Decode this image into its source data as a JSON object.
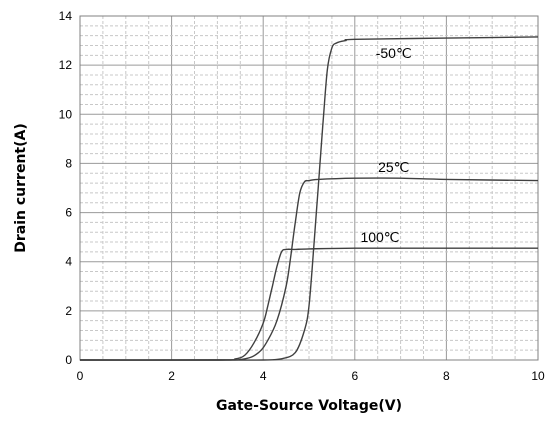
{
  "chart_data": {
    "type": "line",
    "title": "",
    "xlabel": "Gate-Source Voltage(V)",
    "ylabel": "Drain current(A)",
    "xlim": [
      0,
      10
    ],
    "ylim": [
      0,
      14
    ],
    "x_ticks": [
      "0",
      "2",
      "4",
      "6",
      "8",
      "10"
    ],
    "y_ticks": [
      "0",
      "2",
      "4",
      "6",
      "8",
      "10",
      "12",
      "14"
    ],
    "grid": true,
    "line_color": "#404040",
    "series": [
      {
        "annotation": "-50℃",
        "x": [
          0,
          3.0,
          4.0,
          4.4,
          4.7,
          4.9,
          5.0,
          5.1,
          5.2,
          5.3,
          5.4,
          5.5,
          5.6,
          5.8,
          6.0,
          8.0,
          10.0
        ],
        "y": [
          0,
          0,
          0,
          0.05,
          0.3,
          1.2,
          2.2,
          4.5,
          7.0,
          9.5,
          11.8,
          12.7,
          12.9,
          13.0,
          13.05,
          13.1,
          13.15
        ]
      },
      {
        "annotation": "25℃",
        "x": [
          0,
          3.0,
          3.6,
          3.9,
          4.1,
          4.3,
          4.5,
          4.6,
          4.7,
          4.8,
          4.9,
          5.0,
          5.2,
          6.0,
          7.0,
          8.0,
          10.0
        ],
        "y": [
          0,
          0,
          0.05,
          0.3,
          0.8,
          1.6,
          3.0,
          4.2,
          5.6,
          6.8,
          7.25,
          7.3,
          7.35,
          7.4,
          7.4,
          7.35,
          7.3
        ]
      },
      {
        "annotation": "100℃",
        "x": [
          0,
          3.0,
          3.4,
          3.6,
          3.8,
          4.0,
          4.1,
          4.2,
          4.3,
          4.4,
          4.5,
          4.7,
          5.0,
          6.0,
          8.0,
          10.0
        ],
        "y": [
          0,
          0,
          0.05,
          0.2,
          0.7,
          1.5,
          2.2,
          3.0,
          3.8,
          4.4,
          4.5,
          4.5,
          4.52,
          4.55,
          4.55,
          4.55
        ]
      }
    ]
  }
}
